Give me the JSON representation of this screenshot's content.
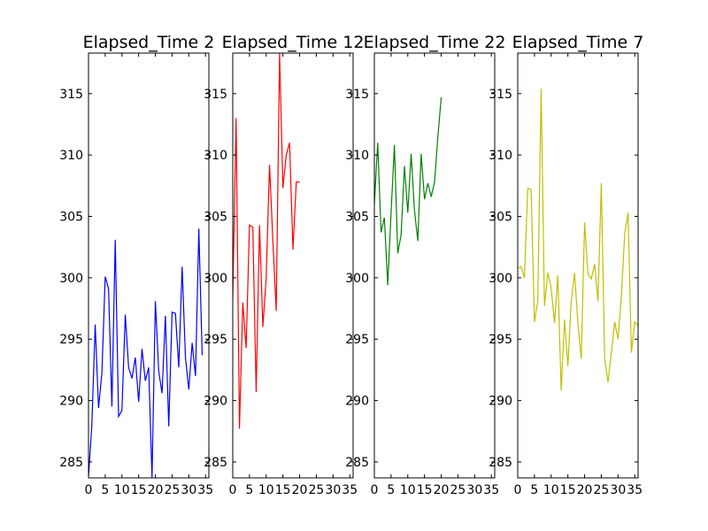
{
  "chart_data": [
    {
      "type": "line",
      "title": "Elapsed_Time 2",
      "color": "#0000ff",
      "xlim": [
        0,
        36
      ],
      "ylim": [
        283.7,
        318.3
      ],
      "xticks": [
        0,
        5,
        10,
        15,
        20,
        25,
        30,
        35
      ],
      "yticks": [
        285,
        290,
        295,
        300,
        305,
        310,
        315
      ],
      "x": [
        0,
        1,
        2,
        3,
        4,
        5,
        6,
        7,
        8,
        9,
        10,
        11,
        12,
        13,
        14,
        15,
        16,
        17,
        18,
        19,
        20,
        21,
        22,
        23,
        24,
        25,
        26,
        27,
        28,
        29,
        30,
        31,
        32,
        33,
        34
      ],
      "values": [
        283.8,
        288.0,
        296.2,
        289.4,
        292.2,
        300.1,
        299.1,
        289.5,
        303.1,
        288.7,
        289.2,
        297.0,
        292.7,
        291.8,
        293.5,
        289.9,
        294.2,
        291.6,
        292.7,
        283.7,
        298.1,
        292.4,
        290.6,
        296.9,
        287.9,
        297.2,
        297.1,
        292.7,
        300.9,
        293.5,
        290.9,
        294.7,
        292.0,
        304.0,
        293.7
      ]
    },
    {
      "type": "line",
      "title": "Elapsed_Time 12",
      "color": "#ff0000",
      "xlim": [
        0,
        36
      ],
      "ylim": [
        283.7,
        318.3
      ],
      "xticks": [
        0,
        5,
        10,
        15,
        20,
        25,
        30,
        35
      ],
      "yticks": [
        285,
        290,
        295,
        300,
        305,
        310,
        315
      ],
      "x": [
        0,
        1,
        2,
        3,
        4,
        5,
        6,
        7,
        8,
        9,
        10,
        11,
        12,
        13,
        14,
        15,
        16,
        17,
        18,
        19,
        20
      ],
      "values": [
        298.3,
        313.0,
        287.7,
        298.0,
        294.3,
        304.3,
        304.1,
        290.7,
        304.3,
        296.0,
        300.0,
        309.2,
        303.0,
        297.3,
        318.3,
        307.3,
        310.0,
        311.0,
        302.3,
        307.8,
        307.8
      ]
    },
    {
      "type": "line",
      "title": "Elapsed_Time 22",
      "color": "#008000",
      "xlim": [
        0,
        36
      ],
      "ylim": [
        283.7,
        318.3
      ],
      "xticks": [
        0,
        5,
        10,
        15,
        20,
        25,
        30,
        35
      ],
      "yticks": [
        285,
        290,
        295,
        300,
        305,
        310,
        315
      ],
      "x": [
        0,
        1,
        2,
        3,
        4,
        5,
        6,
        7,
        8,
        9,
        10,
        11,
        12,
        13,
        14,
        15,
        16,
        17,
        18,
        19,
        20
      ],
      "values": [
        306.0,
        311.0,
        303.7,
        304.9,
        299.4,
        305.3,
        310.8,
        302.0,
        303.5,
        309.1,
        305.3,
        310.1,
        305.5,
        303.0,
        310.1,
        306.4,
        307.7,
        306.6,
        307.8,
        311.5,
        314.7
      ]
    },
    {
      "type": "line",
      "title": "Elapsed_Time 7",
      "color": "#bfbf00",
      "xlim": [
        0,
        36
      ],
      "ylim": [
        283.7,
        318.3
      ],
      "xticks": [
        0,
        5,
        10,
        15,
        20,
        25,
        30,
        35
      ],
      "yticks": [
        285,
        290,
        295,
        300,
        305,
        310,
        315
      ],
      "x": [
        0,
        1,
        2,
        3,
        4,
        5,
        6,
        7,
        8,
        9,
        10,
        11,
        12,
        13,
        14,
        15,
        16,
        17,
        18,
        19,
        20,
        21,
        22,
        23,
        24,
        25,
        26,
        27,
        28,
        29,
        30,
        31,
        32,
        33,
        34,
        35,
        36
      ],
      "values": [
        300.8,
        300.9,
        300.0,
        307.3,
        307.2,
        296.4,
        298.1,
        315.4,
        297.7,
        300.4,
        299.2,
        296.3,
        300.2,
        290.8,
        296.6,
        292.8,
        298.1,
        300.4,
        296.3,
        293.4,
        304.5,
        300.3,
        299.9,
        301.1,
        298.1,
        307.7,
        293.4,
        291.5,
        293.9,
        296.4,
        295.0,
        298.5,
        303.6,
        305.3,
        293.9,
        296.4,
        296.1
      ]
    }
  ]
}
